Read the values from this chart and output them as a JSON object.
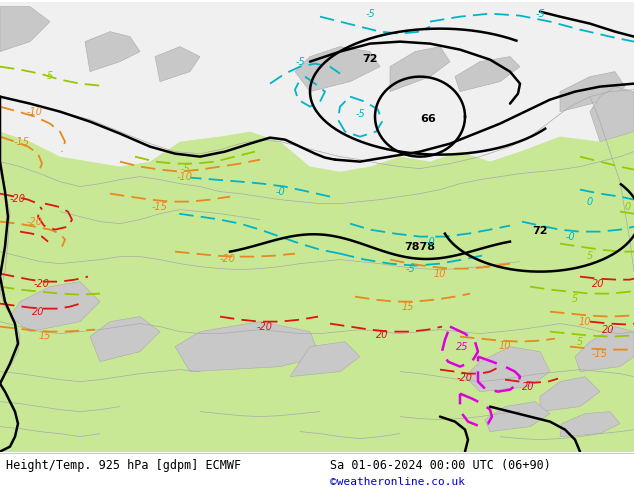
{
  "title_left": "Height/Temp. 925 hPa [gdpm] ECMWF",
  "title_right": "Sa 01-06-2024 00:00 UTC (06+90)",
  "copyright": "©weatheronline.co.uk",
  "map_green": "#c8e896",
  "map_green2": "#b4dc78",
  "gray_land": "#c8c8c8",
  "gray_top": "#d8d8d8",
  "white_top": "#f0f0f0",
  "black": "#000000",
  "cyan": "#00b4c8",
  "lime": "#96c800",
  "orange": "#e88820",
  "red": "#dc1414",
  "magenta": "#dc00dc",
  "title_fontsize": 9,
  "copyright_color": "#0000cc"
}
